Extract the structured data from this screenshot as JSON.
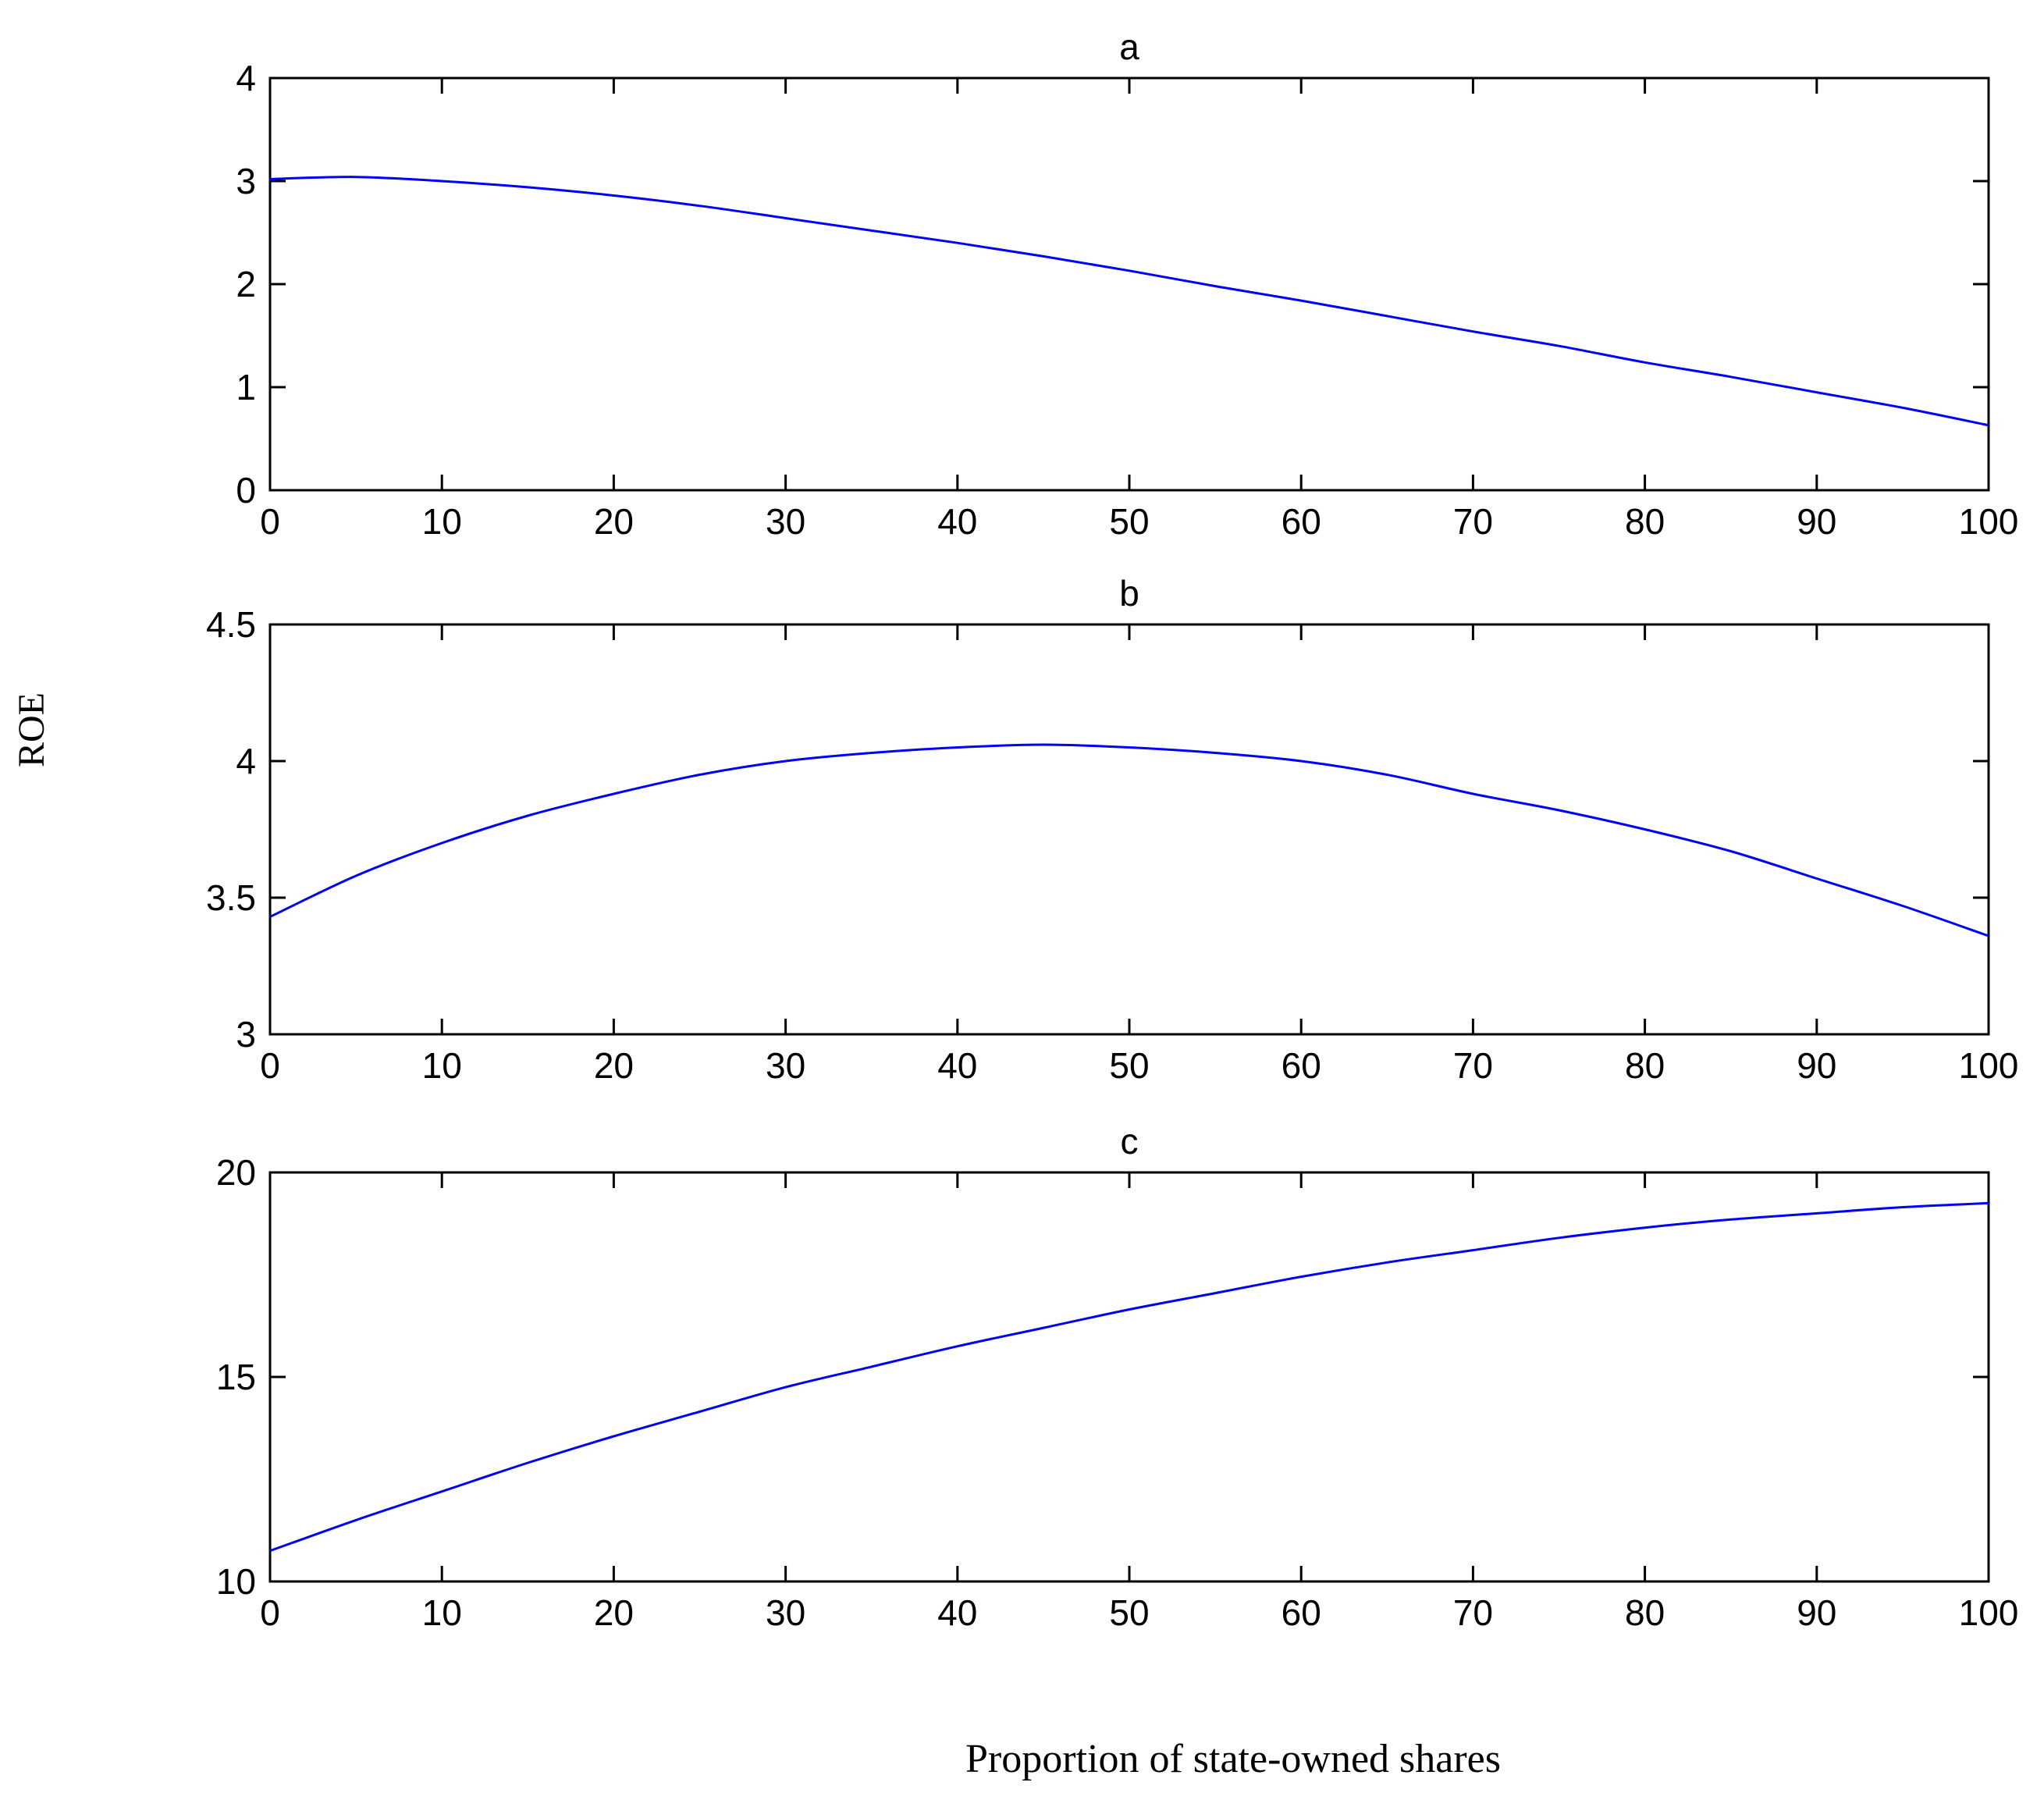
{
  "figure": {
    "ylabel": "ROE",
    "xlabel": "Proportion of state-owned shares"
  },
  "chart_data": [
    {
      "type": "line",
      "title": "a",
      "xlim": [
        0,
        100
      ],
      "ylim": [
        0,
        4
      ],
      "xticks": [
        0,
        10,
        20,
        30,
        40,
        50,
        60,
        70,
        80,
        90,
        100
      ],
      "yticks": [
        0,
        1,
        2,
        3,
        4
      ],
      "series_color": "#0000ff",
      "series": [
        {
          "x": [
            0,
            5,
            10,
            15,
            20,
            25,
            30,
            35,
            40,
            45,
            50,
            55,
            60,
            65,
            70,
            75,
            80,
            85,
            90,
            95,
            100
          ],
          "values": [
            3.02,
            3.04,
            3.0,
            2.94,
            2.86,
            2.76,
            2.64,
            2.52,
            2.4,
            2.27,
            2.13,
            1.98,
            1.84,
            1.69,
            1.54,
            1.4,
            1.24,
            1.1,
            0.95,
            0.8,
            0.63
          ]
        }
      ]
    },
    {
      "type": "line",
      "title": "b",
      "xlim": [
        0,
        100
      ],
      "ylim": [
        3,
        4.5
      ],
      "xticks": [
        0,
        10,
        20,
        30,
        40,
        50,
        60,
        70,
        80,
        90,
        100
      ],
      "yticks": [
        3,
        3.5,
        4,
        4.5
      ],
      "ytick_labels": [
        "3",
        "3.5",
        "4",
        "4.5"
      ],
      "series_color": "#0000ff",
      "series": [
        {
          "x": [
            0,
            5,
            10,
            15,
            20,
            25,
            30,
            35,
            40,
            45,
            50,
            55,
            60,
            65,
            70,
            75,
            80,
            85,
            90,
            95,
            100
          ],
          "values": [
            3.43,
            3.58,
            3.7,
            3.8,
            3.88,
            3.95,
            4.0,
            4.03,
            4.05,
            4.06,
            4.05,
            4.03,
            4.0,
            3.95,
            3.88,
            3.82,
            3.75,
            3.67,
            3.57,
            3.47,
            3.36
          ]
        }
      ]
    },
    {
      "type": "line",
      "title": "c",
      "xlim": [
        0,
        100
      ],
      "ylim": [
        10,
        20
      ],
      "xticks": [
        0,
        10,
        20,
        30,
        40,
        50,
        60,
        70,
        80,
        90,
        100
      ],
      "yticks": [
        10,
        15,
        20
      ],
      "series_color": "#0000ff",
      "series": [
        {
          "x": [
            0,
            5,
            10,
            15,
            20,
            25,
            30,
            35,
            40,
            45,
            50,
            55,
            60,
            65,
            70,
            75,
            80,
            85,
            90,
            95,
            100
          ],
          "values": [
            10.75,
            11.5,
            12.2,
            12.9,
            13.55,
            14.15,
            14.75,
            15.25,
            15.75,
            16.2,
            16.65,
            17.05,
            17.45,
            17.8,
            18.1,
            18.4,
            18.65,
            18.85,
            19.0,
            19.15,
            19.25
          ]
        }
      ]
    }
  ]
}
